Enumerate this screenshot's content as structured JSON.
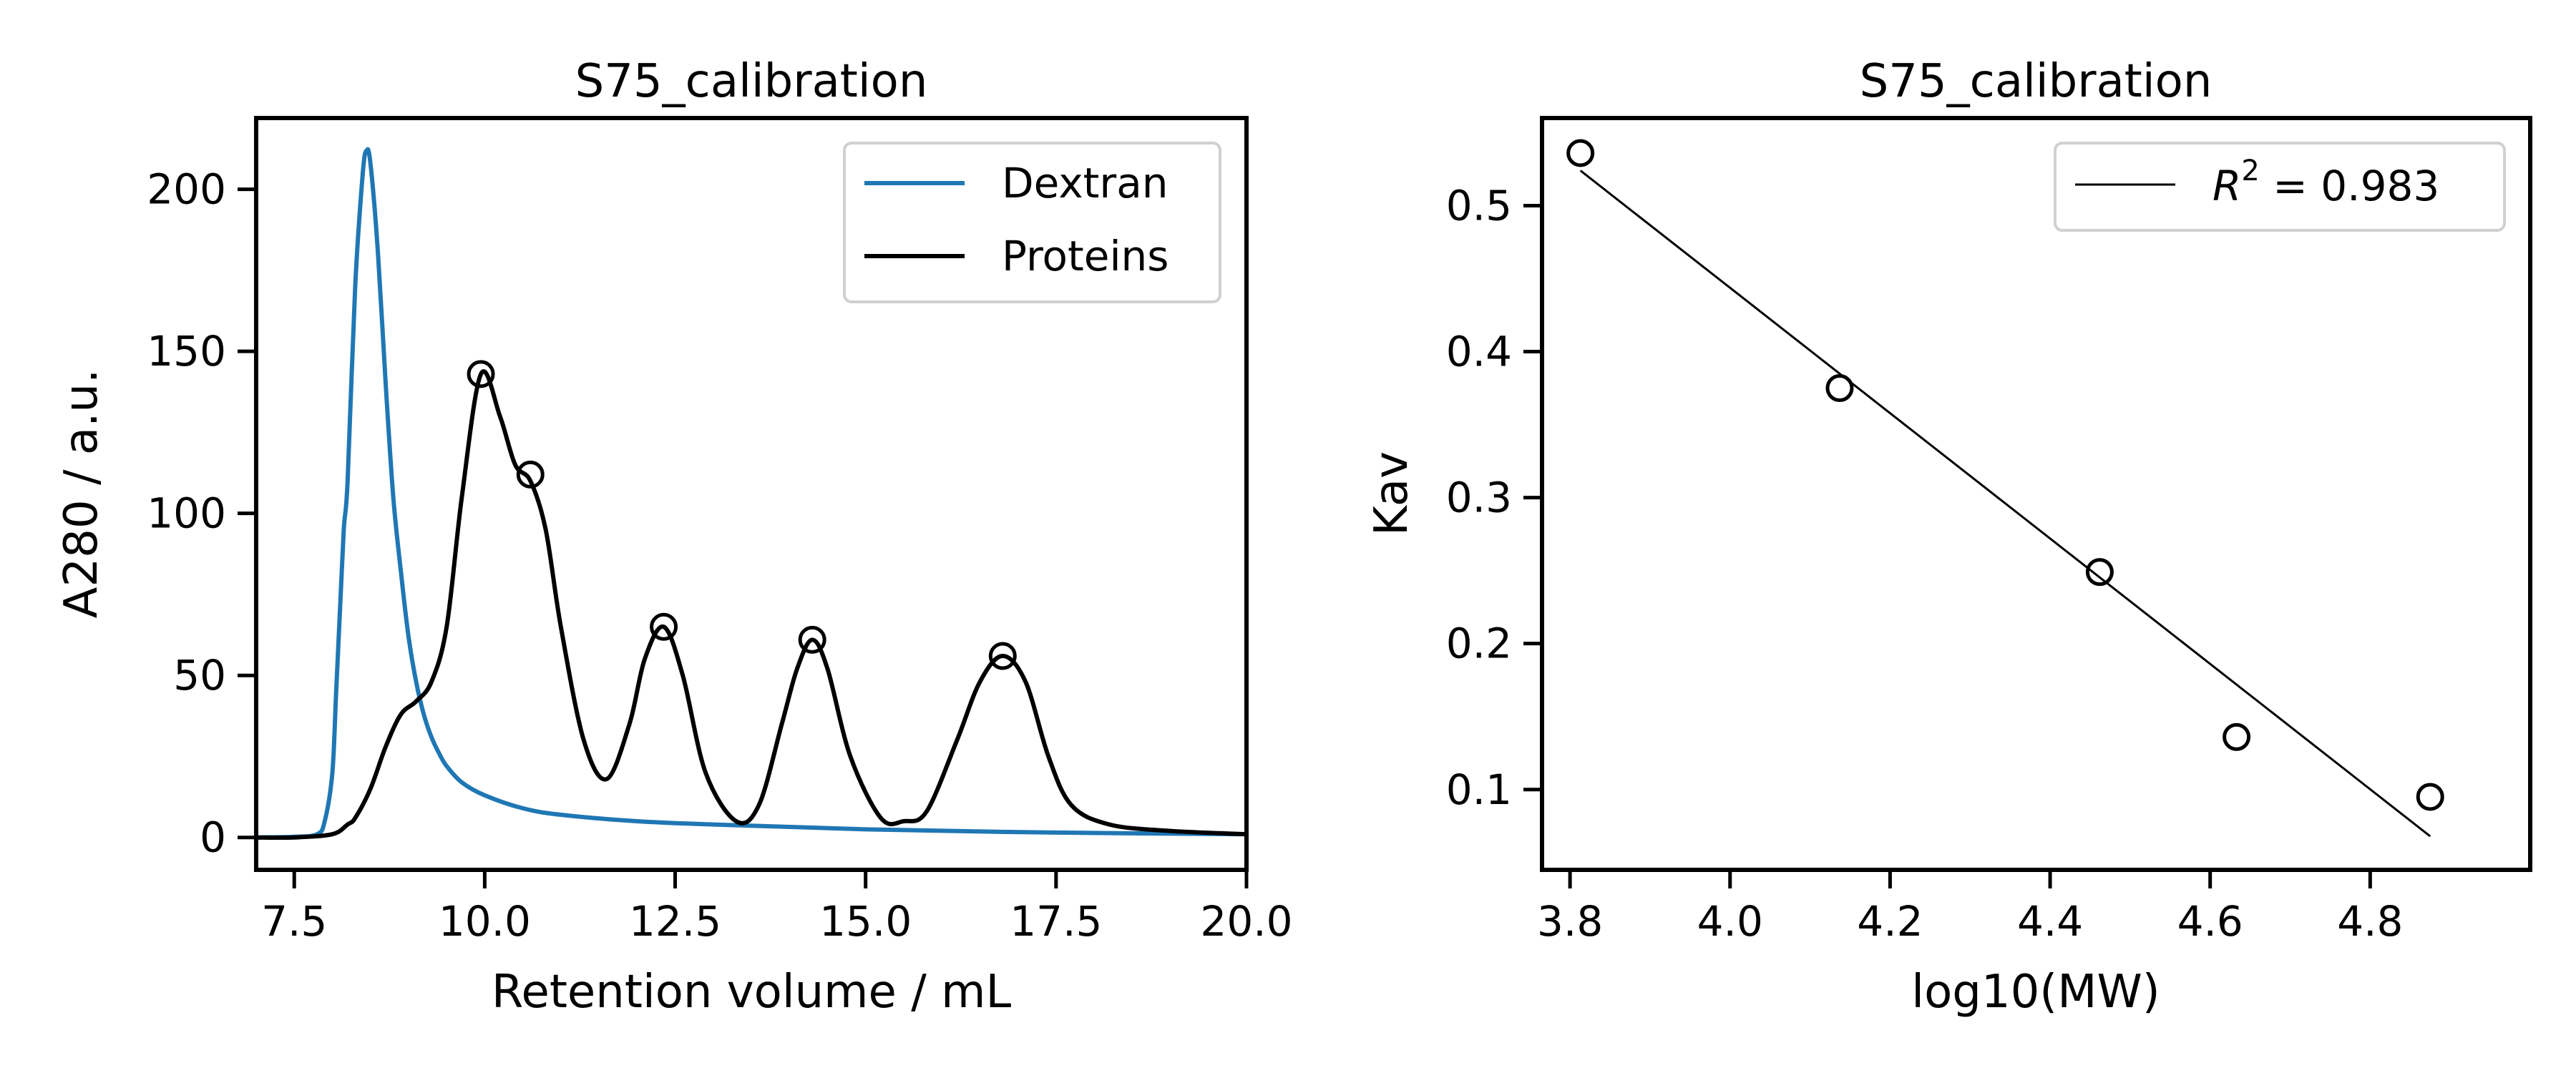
{
  "chart_data": [
    {
      "type": "line",
      "title": "S75_calibration",
      "xlabel": "Retention volume / mL",
      "ylabel": "A280 / a.u.",
      "xlim": [
        7.0,
        20.0
      ],
      "ylim": [
        -10,
        222
      ],
      "xticks": [
        7.5,
        10.0,
        12.5,
        15.0,
        17.5,
        20.0
      ],
      "xtick_labels": [
        "7.5",
        "10.0",
        "12.5",
        "15.0",
        "17.5",
        "20.0"
      ],
      "yticks": [
        0,
        50,
        100,
        150,
        200
      ],
      "ytick_labels": [
        "0",
        "50",
        "100",
        "150",
        "200"
      ],
      "legend_position": "top-right",
      "grid": false,
      "series": [
        {
          "name": "Dextran",
          "color": "#1f77b4",
          "x": [
            7.0,
            7.5,
            7.8,
            7.9,
            8.0,
            8.05,
            8.1,
            8.15,
            8.2,
            8.3,
            8.4,
            8.45,
            8.5,
            8.6,
            8.7,
            8.8,
            8.9,
            9.0,
            9.1,
            9.2,
            9.3,
            9.4,
            9.5,
            9.7,
            10.0,
            10.5,
            11.0,
            12.0,
            13.0,
            15.0,
            17.5,
            20.0
          ],
          "y": [
            0,
            0.2,
            1,
            5,
            20,
            45,
            70,
            95,
            110,
            170,
            205,
            212,
            208,
            180,
            140,
            105,
            82,
            62,
            48,
            38,
            31,
            26,
            22,
            17,
            13,
            9,
            7,
            5,
            4,
            2.5,
            1.5,
            1
          ]
        },
        {
          "name": "Proteins",
          "color": "#000000",
          "x": [
            7.0,
            7.5,
            8.0,
            8.2,
            8.3,
            8.5,
            8.7,
            8.9,
            9.1,
            9.3,
            9.5,
            9.7,
            9.95,
            10.2,
            10.4,
            10.6,
            10.8,
            11.0,
            11.3,
            11.6,
            11.9,
            12.1,
            12.35,
            12.6,
            12.9,
            13.3,
            13.6,
            13.9,
            14.1,
            14.3,
            14.5,
            14.8,
            15.2,
            15.5,
            15.8,
            16.2,
            16.5,
            16.8,
            17.1,
            17.4,
            17.7,
            18.2,
            19.0,
            20.0
          ],
          "y": [
            0,
            0,
            1,
            4,
            6,
            15,
            28,
            38,
            42,
            48,
            65,
            105,
            143,
            130,
            115,
            110,
            95,
            65,
            30,
            18,
            35,
            55,
            65,
            50,
            20,
            5,
            10,
            35,
            52,
            61,
            52,
            25,
            6,
            5,
            8,
            30,
            48,
            56,
            48,
            25,
            10,
            4,
            2,
            1
          ]
        }
      ],
      "peak_markers": {
        "x": [
          9.95,
          10.6,
          12.35,
          14.3,
          16.8
        ],
        "y": [
          143,
          112,
          65,
          61,
          56
        ]
      }
    },
    {
      "type": "scatter",
      "title": "S75_calibration",
      "xlabel": "log10(MW)",
      "ylabel": "Kav",
      "xlim": [
        3.765,
        5.0
      ],
      "ylim": [
        0.045,
        0.56
      ],
      "xticks": [
        3.8,
        4.0,
        4.2,
        4.4,
        4.6,
        4.8
      ],
      "xtick_labels": [
        "3.8",
        "4.0",
        "4.2",
        "4.4",
        "4.6",
        "4.8"
      ],
      "yticks": [
        0.1,
        0.2,
        0.3,
        0.4,
        0.5
      ],
      "ytick_labels": [
        "0.1",
        "0.2",
        "0.3",
        "0.4",
        "0.5"
      ],
      "legend_position": "top-right",
      "grid": false,
      "points": {
        "x": [
          3.813,
          4.137,
          4.462,
          4.633,
          4.875
        ],
        "y": [
          0.536,
          0.375,
          0.249,
          0.136,
          0.095
        ]
      },
      "fit_line": {
        "label": "R² = 0.983",
        "label_base": "R",
        "label_sup": "2",
        "label_rest": " = 0.983",
        "x": [
          3.813,
          4.875
        ],
        "y": [
          0.524,
          0.068
        ]
      }
    }
  ]
}
